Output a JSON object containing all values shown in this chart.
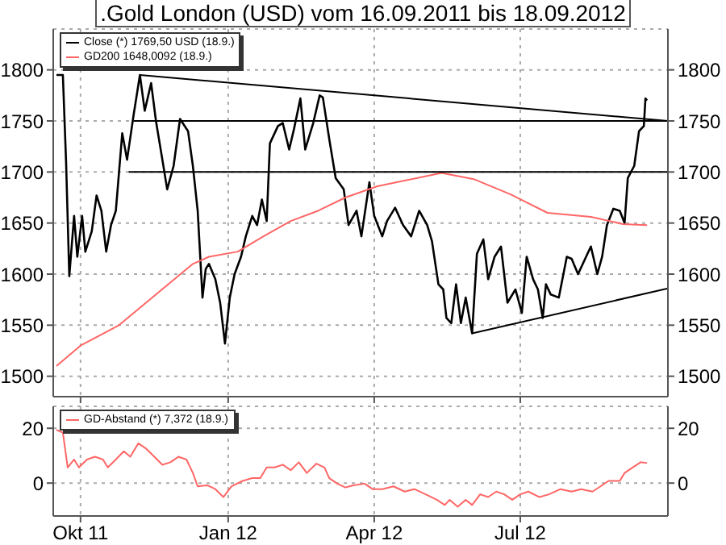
{
  "chart_data": [
    {
      "type": "line",
      "title": ".Gold London (USD) vom 16.09.2011 bis 18.09.2012",
      "xlim": [
        "2011-09-14",
        "2012-10-01"
      ],
      "xticks": [
        {
          "value": "2011-10-01",
          "label": null
        },
        {
          "value": "2012-01-01",
          "label": null
        },
        {
          "value": "2012-04-01",
          "label": null
        },
        {
          "value": "2012-07-01",
          "label": null
        }
      ],
      "ylim": [
        1480,
        1840
      ],
      "yticks": [
        1500,
        1550,
        1600,
        1650,
        1700,
        1750,
        1800
      ],
      "y2lim": [
        1480,
        1840
      ],
      "y2ticks": [
        1500,
        1550,
        1600,
        1650,
        1700,
        1750,
        1800
      ],
      "grid": true,
      "legend": "top left",
      "tick_labels": "y",
      "marker": "none",
      "line_style": "solid",
      "series": [
        {
          "name": "Close (*) 1769,50 USD (18.9.)",
          "color": "#000000",
          "x": [
            "2011-09-16",
            "2011-09-20",
            "2011-09-22",
            "2011-09-24",
            "2011-09-27",
            "2011-09-29",
            "2011-10-02",
            "2011-10-04",
            "2011-10-08",
            "2011-10-11",
            "2011-10-14",
            "2011-10-17",
            "2011-10-20",
            "2011-10-23",
            "2011-10-27",
            "2011-10-30",
            "2011-11-03",
            "2011-11-07",
            "2011-11-10",
            "2011-11-14",
            "2011-11-17",
            "2011-11-21",
            "2011-11-24",
            "2011-11-28",
            "2011-12-02",
            "2011-12-07",
            "2011-12-10",
            "2011-12-13",
            "2011-12-16",
            "2011-12-18",
            "2011-12-20",
            "2011-12-24",
            "2011-12-27",
            "2011-12-30",
            "2012-01-02",
            "2012-01-05",
            "2012-01-09",
            "2012-01-12",
            "2012-01-16",
            "2012-01-19",
            "2012-01-22",
            "2012-01-25",
            "2012-01-27",
            "2012-02-01",
            "2012-02-04",
            "2012-02-08",
            "2012-02-11",
            "2012-02-15",
            "2012-02-18",
            "2012-02-23",
            "2012-02-27",
            "2012-02-29",
            "2012-03-04",
            "2012-03-08",
            "2012-03-13",
            "2012-03-16",
            "2012-03-21",
            "2012-03-24",
            "2012-03-29",
            "2012-04-01",
            "2012-04-06",
            "2012-04-09",
            "2012-04-14",
            "2012-04-19",
            "2012-04-24",
            "2012-04-29",
            "2012-05-04",
            "2012-05-07",
            "2012-05-11",
            "2012-05-14",
            "2012-05-16",
            "2012-05-19",
            "2012-05-22",
            "2012-05-25",
            "2012-05-28",
            "2012-06-01",
            "2012-06-04",
            "2012-06-08",
            "2012-06-11",
            "2012-06-15",
            "2012-06-19",
            "2012-06-23",
            "2012-06-28",
            "2012-07-02",
            "2012-07-05",
            "2012-07-09",
            "2012-07-12",
            "2012-07-15",
            "2012-07-17",
            "2012-07-20",
            "2012-07-25",
            "2012-07-30",
            "2012-08-02",
            "2012-08-06",
            "2012-08-11",
            "2012-08-14",
            "2012-08-18",
            "2012-08-21",
            "2012-08-24",
            "2012-08-28",
            "2012-09-01",
            "2012-09-04",
            "2012-09-06",
            "2012-09-10",
            "2012-09-13",
            "2012-09-16",
            "2012-09-17",
            "2012-09-18"
          ],
          "values": [
            1795,
            1795,
            1710,
            1598,
            1657,
            1617,
            1657,
            1622,
            1642,
            1677,
            1662,
            1622,
            1648,
            1662,
            1738,
            1712,
            1755,
            1795,
            1760,
            1787,
            1750,
            1712,
            1683,
            1706,
            1752,
            1740,
            1706,
            1662,
            1577,
            1605,
            1610,
            1595,
            1572,
            1532,
            1577,
            1600,
            1617,
            1637,
            1657,
            1648,
            1673,
            1652,
            1728,
            1745,
            1748,
            1722,
            1742,
            1772,
            1722,
            1748,
            1775,
            1773,
            1732,
            1694,
            1683,
            1648,
            1662,
            1637,
            1690,
            1657,
            1637,
            1652,
            1665,
            1648,
            1637,
            1662,
            1648,
            1632,
            1590,
            1585,
            1557,
            1552,
            1590,
            1552,
            1577,
            1542,
            1620,
            1634,
            1595,
            1617,
            1627,
            1572,
            1585,
            1562,
            1617,
            1595,
            1585,
            1557,
            1590,
            1580,
            1577,
            1617,
            1615,
            1600,
            1617,
            1627,
            1600,
            1617,
            1648,
            1664,
            1662,
            1650,
            1694,
            1706,
            1740,
            1745,
            1772,
            1770
          ]
        },
        {
          "name": "GD200 1648,0092 (18.9.)",
          "color": "#ff6666",
          "x": [
            "2011-09-16",
            "2011-10-01",
            "2011-10-25",
            "2011-11-17",
            "2011-12-10",
            "2011-12-20",
            "2012-01-07",
            "2012-01-23",
            "2012-02-09",
            "2012-02-26",
            "2012-03-14",
            "2012-04-03",
            "2012-05-13",
            "2012-06-02",
            "2012-06-25",
            "2012-07-18",
            "2012-08-14",
            "2012-09-03",
            "2012-09-18"
          ],
          "values": [
            1510,
            1530,
            1550,
            1580,
            1610,
            1617,
            1622,
            1637,
            1652,
            1662,
            1675,
            1686,
            1699,
            1693,
            1678,
            1660,
            1656,
            1649,
            1648
          ]
        },
        {
          "color": "#000000",
          "x": [
            "2011-11-07",
            "2012-10-01"
          ],
          "values": [
            1795,
            1750
          ]
        },
        {
          "color": "#000000",
          "x": [
            "2011-11-03",
            "2012-10-01"
          ],
          "values": [
            1750,
            1750
          ]
        },
        {
          "color": "#000000",
          "x": [
            "2011-10-31",
            "2012-10-01"
          ],
          "values": [
            1700,
            1700
          ]
        },
        {
          "color": "#000000",
          "x": [
            "2012-06-01",
            "2012-10-01"
          ],
          "values": [
            1542,
            1586
          ]
        }
      ]
    },
    {
      "type": "line",
      "xlim": [
        "2011-09-14",
        "2012-10-01"
      ],
      "xticks": [
        {
          "value": "2011-10-01",
          "label": "Okt 11"
        },
        {
          "value": "2012-01-01",
          "label": "Jan 12"
        },
        {
          "value": "2012-04-01",
          "label": "Apr 12"
        },
        {
          "value": "2012-07-01",
          "label": "Jul 12"
        }
      ],
      "ylim": [
        -12,
        28
      ],
      "yticks": [
        0,
        20
      ],
      "y2lim": [
        -12,
        28
      ],
      "y2ticks": [
        0,
        20
      ],
      "grid": true,
      "legend": "top left",
      "marker": "none",
      "line_style": "solid",
      "series": [
        {
          "name": "GD-Abstand (*) 7,372 (18.9.)",
          "color": "#ff6666",
          "x": [
            "2011-09-16",
            "2011-09-20",
            "2011-09-23",
            "2011-09-27",
            "2011-09-30",
            "2011-10-05",
            "2011-10-10",
            "2011-10-15",
            "2011-10-18",
            "2011-10-23",
            "2011-10-28",
            "2011-11-01",
            "2011-11-06",
            "2011-11-11",
            "2011-11-16",
            "2011-11-21",
            "2011-11-26",
            "2011-12-01",
            "2011-12-06",
            "2011-12-10",
            "2011-12-13",
            "2011-12-19",
            "2011-12-24",
            "2011-12-29",
            "2012-01-03",
            "2012-01-10",
            "2012-01-16",
            "2012-01-21",
            "2012-01-25",
            "2012-01-30",
            "2012-02-04",
            "2012-02-09",
            "2012-02-14",
            "2012-02-19",
            "2012-02-25",
            "2012-03-01",
            "2012-03-04",
            "2012-03-09",
            "2012-03-14",
            "2012-03-19",
            "2012-03-26",
            "2012-03-31",
            "2012-04-06",
            "2012-04-13",
            "2012-04-20",
            "2012-04-26",
            "2012-05-03",
            "2012-05-10",
            "2012-05-15",
            "2012-05-18",
            "2012-05-23",
            "2012-05-28",
            "2012-06-01",
            "2012-06-06",
            "2012-06-11",
            "2012-06-16",
            "2012-06-21",
            "2012-06-26",
            "2012-07-01",
            "2012-07-06",
            "2012-07-13",
            "2012-07-19",
            "2012-07-26",
            "2012-08-02",
            "2012-08-08",
            "2012-08-15",
            "2012-08-20",
            "2012-08-25",
            "2012-09-01",
            "2012-09-04",
            "2012-09-09",
            "2012-09-14",
            "2012-09-18"
          ],
          "values": [
            19.4,
            18.4,
            5.7,
            8.6,
            5.7,
            8.6,
            9.6,
            8.6,
            5.7,
            8.6,
            11.6,
            9.6,
            14.5,
            12.5,
            9.6,
            6.7,
            7.6,
            9.6,
            8.6,
            3.7,
            -1.2,
            -0.8,
            -2.2,
            -5.1,
            -1.2,
            0.8,
            1.8,
            1.8,
            5.7,
            5.7,
            6.7,
            4.7,
            7.6,
            3.7,
            7.1,
            5.7,
            1.8,
            -0.2,
            -1.6,
            -0.8,
            -0.2,
            -2.2,
            -2.2,
            -1.2,
            -3.1,
            -2.2,
            -4.1,
            -6.1,
            -8.0,
            -6.1,
            -8.6,
            -6.1,
            -8.0,
            -4.1,
            -5.1,
            -3.1,
            -4.1,
            -6.1,
            -4.1,
            -3.1,
            -5.1,
            -4.1,
            -2.2,
            -3.1,
            -2.2,
            -3.1,
            -1.2,
            0.8,
            0.8,
            3.7,
            5.7,
            7.6,
            7.3
          ]
        }
      ]
    }
  ]
}
